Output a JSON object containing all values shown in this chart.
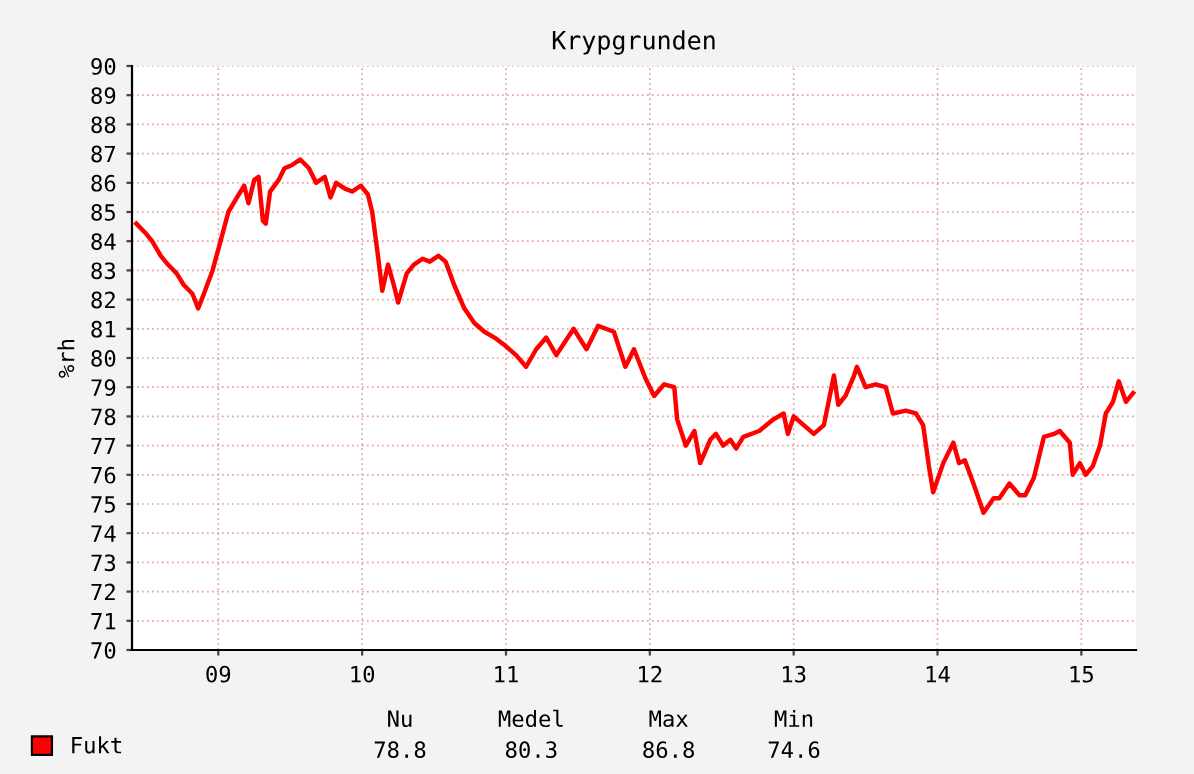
{
  "chart_data": {
    "type": "line",
    "title": "Krypgrunden",
    "ylabel": "%rh",
    "xlim": [
      8.4,
      15.38
    ],
    "ylim": [
      70,
      90
    ],
    "xticks": [
      {
        "value": 9,
        "label": "09"
      },
      {
        "value": 10,
        "label": "10"
      },
      {
        "value": 11,
        "label": "11"
      },
      {
        "value": 12,
        "label": "12"
      },
      {
        "value": 13,
        "label": "13"
      },
      {
        "value": 14,
        "label": "14"
      },
      {
        "value": 15,
        "label": "15"
      }
    ],
    "yticks": [
      70,
      71,
      72,
      73,
      74,
      75,
      76,
      77,
      78,
      79,
      80,
      81,
      82,
      83,
      84,
      85,
      86,
      87,
      88,
      89,
      90
    ],
    "grid": true,
    "legend": "bottom left",
    "marker": "none",
    "line_style": "solid",
    "annotations": [
      "Nu",
      "Medel",
      "Max",
      "Min",
      "78.8",
      "80.3",
      "86.8",
      "74.6"
    ],
    "series": [
      {
        "name": "Fukt",
        "color": "#ff0000",
        "x": [
          8.43,
          8.49,
          8.54,
          8.6,
          8.65,
          8.71,
          8.76,
          8.82,
          8.86,
          8.9,
          8.96,
          9.01,
          9.07,
          9.13,
          9.18,
          9.21,
          9.25,
          9.28,
          9.31,
          9.33,
          9.36,
          9.42,
          9.46,
          9.51,
          9.57,
          9.63,
          9.68,
          9.74,
          9.78,
          9.82,
          9.88,
          9.93,
          9.99,
          10.04,
          10.07,
          10.11,
          10.14,
          10.18,
          10.22,
          10.25,
          10.31,
          10.36,
          10.42,
          10.47,
          10.53,
          10.58,
          10.64,
          10.71,
          10.78,
          10.85,
          10.92,
          11.0,
          11.07,
          11.14,
          11.21,
          11.28,
          11.35,
          11.47,
          11.56,
          11.64,
          11.75,
          11.83,
          11.89,
          11.97,
          12.03,
          12.1,
          12.17,
          12.19,
          12.25,
          12.31,
          12.35,
          12.42,
          12.46,
          12.51,
          12.56,
          12.6,
          12.65,
          12.76,
          12.86,
          12.93,
          12.96,
          13.0,
          13.07,
          13.14,
          13.21,
          13.28,
          13.31,
          13.36,
          13.42,
          13.44,
          13.5,
          13.57,
          13.64,
          13.69,
          13.78,
          13.85,
          13.9,
          13.94,
          13.97,
          14.04,
          14.11,
          14.15,
          14.19,
          14.25,
          14.32,
          14.39,
          14.43,
          14.5,
          14.57,
          14.61,
          14.67,
          14.74,
          14.81,
          14.85,
          14.92,
          14.94,
          14.99,
          15.03,
          15.08,
          15.13,
          15.17,
          15.22,
          15.26,
          15.31,
          15.36
        ],
        "values": [
          84.6,
          84.3,
          84.0,
          83.5,
          83.2,
          82.9,
          82.5,
          82.2,
          81.7,
          82.2,
          83.0,
          83.9,
          85.0,
          85.5,
          85.9,
          85.3,
          86.1,
          86.2,
          84.7,
          84.6,
          85.7,
          86.1,
          86.5,
          86.6,
          86.8,
          86.5,
          86.0,
          86.2,
          85.5,
          86.0,
          85.8,
          85.7,
          85.9,
          85.6,
          85.0,
          83.5,
          82.3,
          83.2,
          82.5,
          81.9,
          82.9,
          83.2,
          83.4,
          83.3,
          83.5,
          83.3,
          82.5,
          81.7,
          81.2,
          80.9,
          80.7,
          80.4,
          80.1,
          79.7,
          80.3,
          80.7,
          80.1,
          81.0,
          80.3,
          81.1,
          80.9,
          79.7,
          80.3,
          79.3,
          78.7,
          79.1,
          79.0,
          77.9,
          77.0,
          77.5,
          76.4,
          77.2,
          77.4,
          77.0,
          77.2,
          76.9,
          77.3,
          77.5,
          77.9,
          78.1,
          77.4,
          78.0,
          77.7,
          77.4,
          77.7,
          79.4,
          78.4,
          78.7,
          79.4,
          79.7,
          79.0,
          79.1,
          79.0,
          78.1,
          78.2,
          78.1,
          77.7,
          76.3,
          75.4,
          76.4,
          77.1,
          76.4,
          76.5,
          75.7,
          74.7,
          75.2,
          75.2,
          75.7,
          75.3,
          75.3,
          75.9,
          77.3,
          77.4,
          77.5,
          77.1,
          76.0,
          76.4,
          76.0,
          76.3,
          77.0,
          78.1,
          78.5,
          79.2,
          78.5,
          78.8
        ]
      }
    ]
  }
}
